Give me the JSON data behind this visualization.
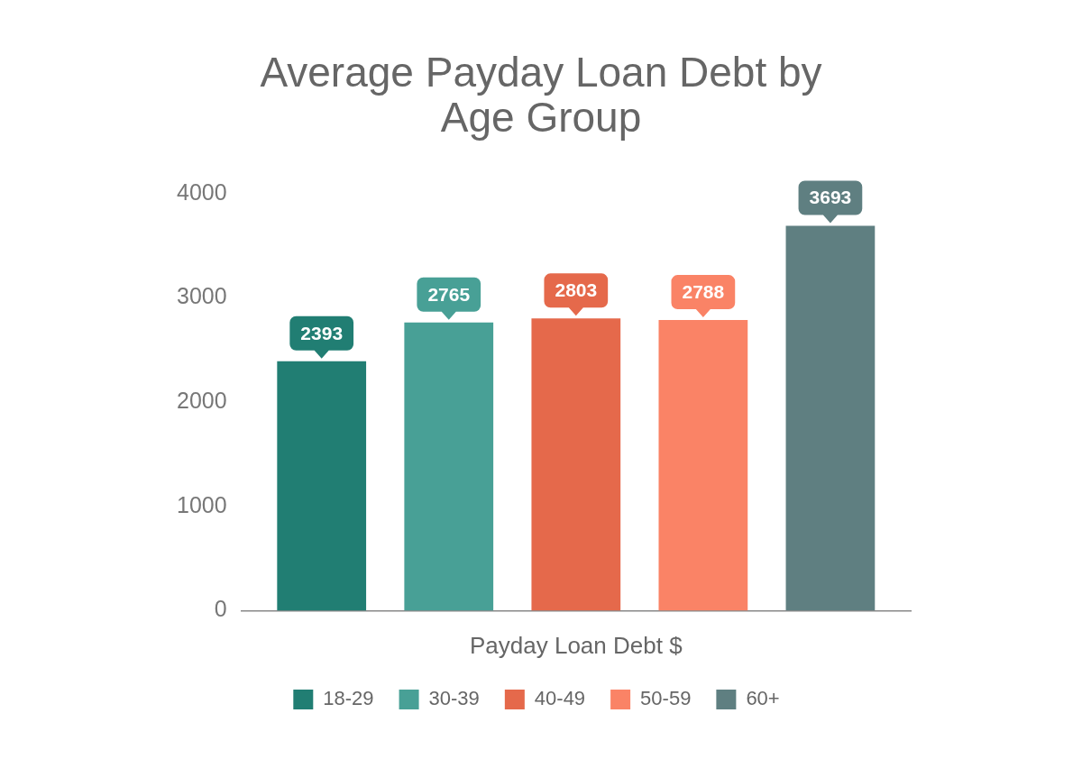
{
  "chart_data": {
    "type": "bar",
    "title": "Average Payday Loan Debt by Age Group",
    "xlabel": "Payday Loan Debt $",
    "categories": [
      null
    ],
    "series": [
      {
        "name": "18-29",
        "color": "#217e73",
        "values": [
          2393
        ]
      },
      {
        "name": "30-39",
        "color": "#48a096",
        "values": [
          2765
        ]
      },
      {
        "name": "40-49",
        "color": "#e5694b",
        "values": [
          2803
        ]
      },
      {
        "name": "50-59",
        "color": "#fa8366",
        "values": [
          2788
        ]
      },
      {
        "name": "60+",
        "color": "#5f7f81",
        "values": [
          3693
        ]
      }
    ],
    "ylim": [
      0,
      4000
    ],
    "yticks": [
      0,
      1000,
      2000,
      3000,
      4000
    ],
    "data_labels": true,
    "legend": "bottom"
  }
}
